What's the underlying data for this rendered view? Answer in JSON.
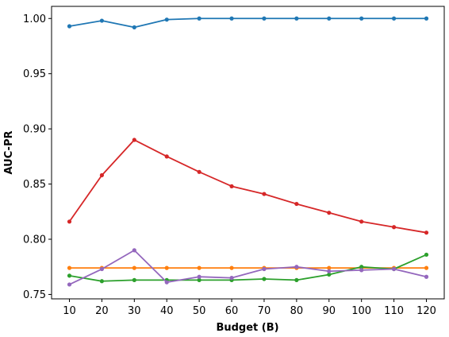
{
  "chart_data": {
    "type": "line",
    "title": "",
    "xlabel": "Budget (B)",
    "ylabel": "AUC-PR",
    "x": [
      10,
      20,
      30,
      40,
      50,
      60,
      70,
      80,
      90,
      100,
      110,
      120
    ],
    "xticks": [
      "10",
      "20",
      "30",
      "40",
      "50",
      "60",
      "70",
      "80",
      "90",
      "100",
      "110",
      "120"
    ],
    "yticks": [
      "0.75",
      "0.80",
      "0.85",
      "0.90",
      "0.95",
      "1.00"
    ],
    "xlim": [
      4.5,
      125.5
    ],
    "ylim": [
      0.746,
      1.011
    ],
    "grid": false,
    "legend": "none",
    "series": [
      {
        "color": "#1f77b4",
        "values": [
          0.993,
          0.998,
          0.992,
          0.999,
          1.0,
          1.0,
          1.0,
          1.0,
          1.0,
          1.0,
          1.0,
          1.0
        ]
      },
      {
        "color": "#ff7f0e",
        "values": [
          0.774,
          0.774,
          0.774,
          0.774,
          0.774,
          0.774,
          0.774,
          0.774,
          0.774,
          0.774,
          0.774,
          0.774
        ]
      },
      {
        "color": "#2ca02c",
        "values": [
          0.767,
          0.762,
          0.763,
          0.763,
          0.763,
          0.763,
          0.764,
          0.763,
          0.768,
          0.775,
          0.773,
          0.786
        ]
      },
      {
        "color": "#d62728",
        "values": [
          0.816,
          0.858,
          0.89,
          0.875,
          0.861,
          0.848,
          0.841,
          0.832,
          0.824,
          0.816,
          0.811,
          0.806
        ]
      },
      {
        "color": "#9467bd",
        "values": [
          0.759,
          0.773,
          0.79,
          0.761,
          0.766,
          0.765,
          0.773,
          0.775,
          0.771,
          0.772,
          0.773,
          0.766
        ]
      }
    ]
  }
}
